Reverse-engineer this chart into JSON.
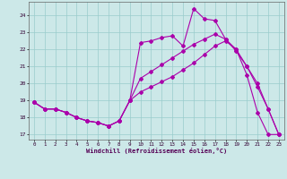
{
  "title": "",
  "xlabel": "Windchill (Refroidissement éolien,°C)",
  "ylabel": "",
  "bg_color": "#cce8e8",
  "line_color": "#aa00aa",
  "grid_color": "#99cccc",
  "xlim": [
    -0.5,
    23.5
  ],
  "ylim": [
    16.7,
    24.8
  ],
  "yticks": [
    17,
    18,
    19,
    20,
    21,
    22,
    23,
    24
  ],
  "xticks": [
    0,
    1,
    2,
    3,
    4,
    5,
    6,
    7,
    8,
    9,
    10,
    11,
    12,
    13,
    14,
    15,
    16,
    17,
    18,
    19,
    20,
    21,
    22,
    23
  ],
  "series": [
    {
      "x": [
        0,
        1,
        2,
        3,
        4,
        5,
        6,
        7,
        8,
        9,
        10,
        11,
        12,
        13,
        14,
        15,
        16,
        17,
        18,
        19,
        20,
        21,
        22,
        23
      ],
      "y": [
        18.9,
        18.5,
        18.5,
        18.3,
        18.0,
        17.8,
        17.7,
        17.5,
        17.8,
        19.0,
        22.4,
        22.5,
        22.7,
        22.8,
        22.2,
        24.4,
        23.8,
        23.7,
        22.6,
        22.0,
        20.5,
        18.3,
        17.0,
        17.0
      ]
    },
    {
      "x": [
        0,
        1,
        2,
        3,
        4,
        5,
        6,
        7,
        8,
        9,
        10,
        11,
        12,
        13,
        14,
        15,
        16,
        17,
        18,
        19,
        20,
        21,
        22,
        23
      ],
      "y": [
        18.9,
        18.5,
        18.5,
        18.3,
        18.0,
        17.8,
        17.7,
        17.5,
        17.8,
        19.0,
        20.3,
        20.7,
        21.1,
        21.5,
        21.9,
        22.3,
        22.6,
        22.9,
        22.6,
        21.9,
        21.0,
        20.0,
        18.5,
        17.0
      ]
    },
    {
      "x": [
        0,
        1,
        2,
        3,
        4,
        5,
        6,
        7,
        8,
        9,
        10,
        11,
        12,
        13,
        14,
        15,
        16,
        17,
        18,
        19,
        20,
        21,
        22,
        23
      ],
      "y": [
        18.9,
        18.5,
        18.5,
        18.3,
        18.0,
        17.8,
        17.7,
        17.5,
        17.8,
        19.0,
        19.5,
        19.8,
        20.1,
        20.4,
        20.8,
        21.2,
        21.7,
        22.2,
        22.5,
        22.0,
        21.0,
        19.8,
        18.5,
        17.0
      ]
    }
  ]
}
